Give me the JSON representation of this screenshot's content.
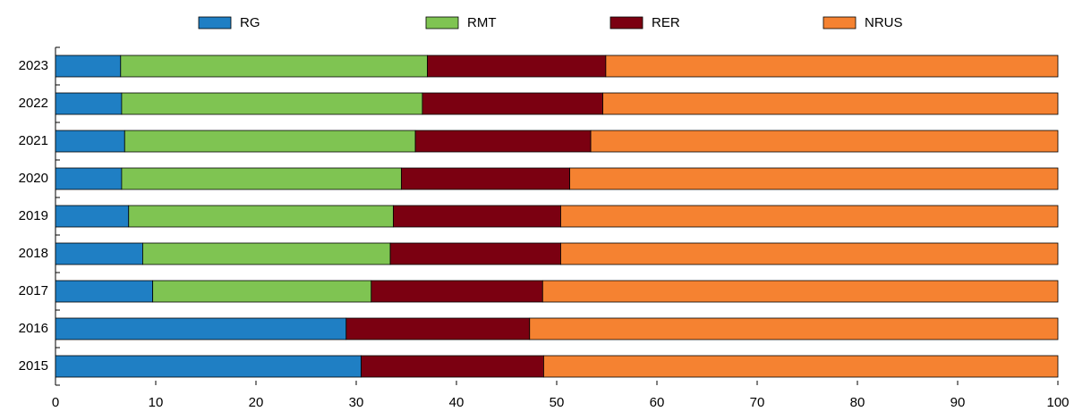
{
  "chart_data": {
    "type": "stacked-bar-horizontal",
    "categories": [
      "2023",
      "2022",
      "2021",
      "2020",
      "2019",
      "2018",
      "2017",
      "2016",
      "2015"
    ],
    "series": [
      {
        "name": "RG",
        "color": "#1f7fc4",
        "values": [
          6.5,
          6.6,
          6.9,
          6.6,
          7.3,
          8.7,
          9.7,
          29.0,
          30.5
        ]
      },
      {
        "name": "RMT",
        "color": "#7fc452",
        "values": [
          30.6,
          30.0,
          29.0,
          27.9,
          26.4,
          24.7,
          21.8,
          null,
          null
        ]
      },
      {
        "name": "RER",
        "color": "#7b0011",
        "values": [
          17.8,
          18.0,
          17.5,
          16.8,
          16.7,
          17.0,
          17.1,
          18.3,
          18.2
        ]
      },
      {
        "name": "NRUS",
        "color": "#f58231",
        "values": [
          45.1,
          45.4,
          46.6,
          48.7,
          49.6,
          49.6,
          51.4,
          52.7,
          51.3
        ]
      }
    ],
    "xlim": [
      0,
      100
    ],
    "xticks": [
      0,
      10,
      20,
      30,
      40,
      50,
      60,
      70,
      80,
      90,
      100
    ]
  }
}
